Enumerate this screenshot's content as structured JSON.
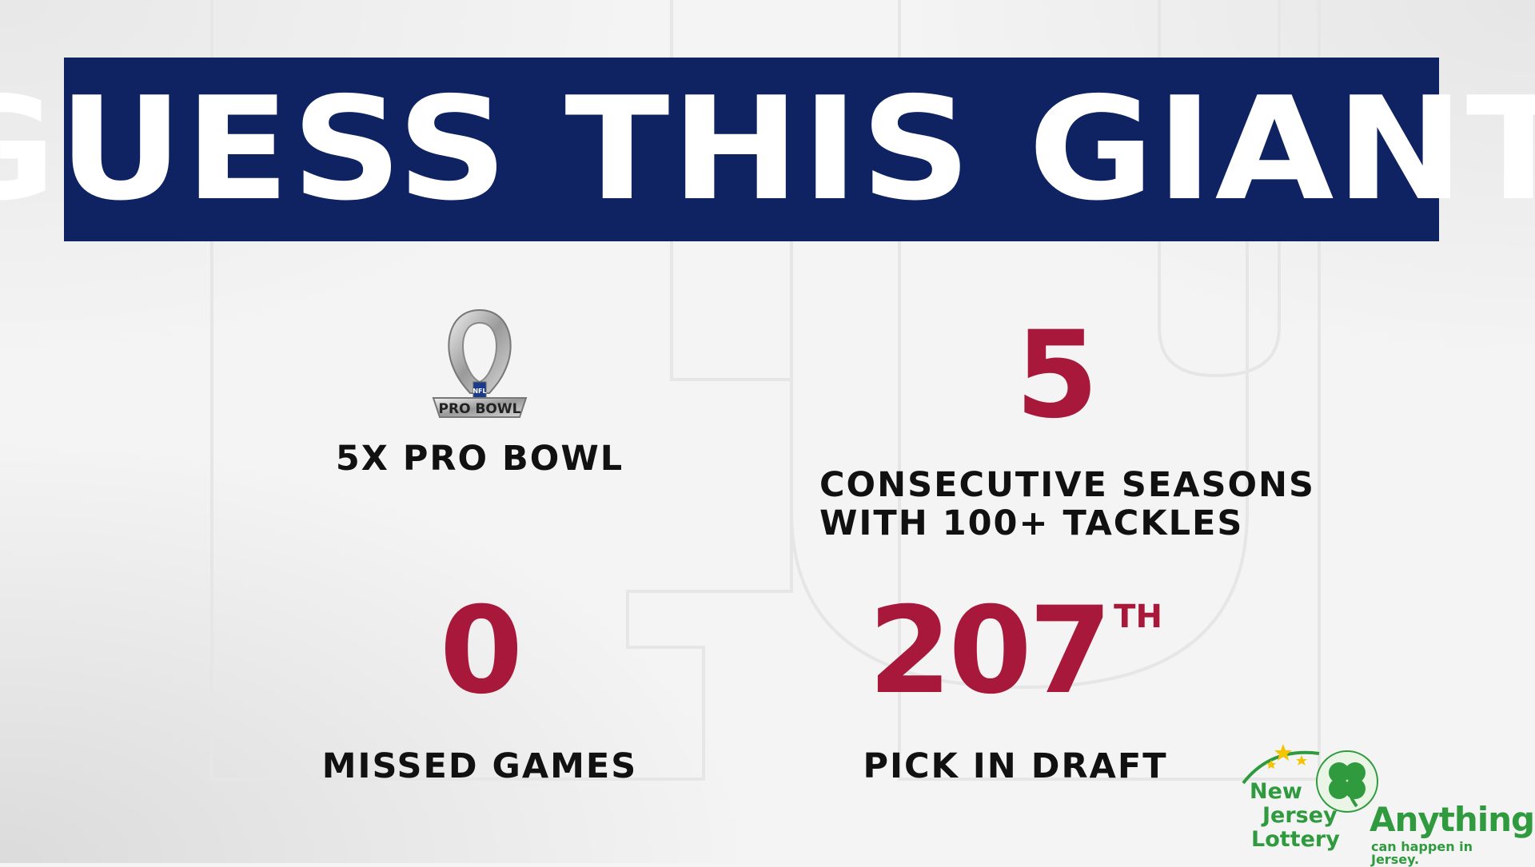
{
  "header": {
    "title": "GUESS THIS GIANT"
  },
  "stats": {
    "pro_bowl": {
      "badge_text": "PRO BOWL",
      "badge_shield": "NFL",
      "label": "5X PRO BOWL"
    },
    "seasons": {
      "value": "5",
      "label_line1": "CONSECUTIVE SEASONS",
      "label_line2": "WITH 100+ TACKLES"
    },
    "missed": {
      "value": "0",
      "label": "MISSED GAMES"
    },
    "draft": {
      "value": "207",
      "suffix": "TH",
      "label": "PICK IN DRAFT"
    }
  },
  "sponsor": {
    "line1": "New",
    "line2": "Jersey",
    "line3": "Lottery",
    "slogan": "Anything",
    "tagline": "can happen in Jersey."
  },
  "colors": {
    "banner": "#0f2262",
    "accent_red": "#a8183a",
    "lottery_green": "#2f9a3e"
  }
}
